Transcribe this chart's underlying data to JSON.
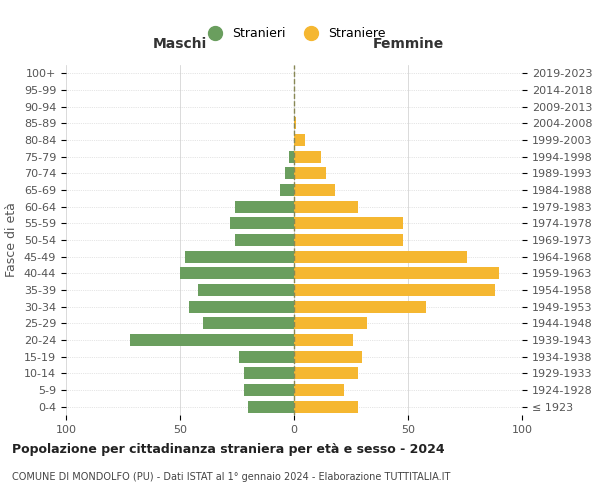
{
  "age_groups": [
    "100+",
    "95-99",
    "90-94",
    "85-89",
    "80-84",
    "75-79",
    "70-74",
    "65-69",
    "60-64",
    "55-59",
    "50-54",
    "45-49",
    "40-44",
    "35-39",
    "30-34",
    "25-29",
    "20-24",
    "15-19",
    "10-14",
    "5-9",
    "0-4"
  ],
  "birth_years": [
    "≤ 1923",
    "1924-1928",
    "1929-1933",
    "1934-1938",
    "1939-1943",
    "1944-1948",
    "1949-1953",
    "1954-1958",
    "1959-1963",
    "1964-1968",
    "1969-1973",
    "1974-1978",
    "1979-1983",
    "1984-1988",
    "1989-1993",
    "1994-1998",
    "1999-2003",
    "2004-2008",
    "2009-2013",
    "2014-2018",
    "2019-2023"
  ],
  "maschi": [
    0,
    0,
    0,
    0,
    0,
    2,
    4,
    6,
    26,
    28,
    26,
    48,
    50,
    42,
    46,
    40,
    72,
    24,
    22,
    22,
    20
  ],
  "femmine": [
    0,
    0,
    0,
    1,
    5,
    12,
    14,
    18,
    28,
    48,
    48,
    76,
    90,
    88,
    58,
    32,
    26,
    30,
    28,
    22,
    28
  ],
  "maschi_color": "#6a9e5e",
  "femmine_color": "#f5b731",
  "background_color": "#ffffff",
  "grid_color": "#cccccc",
  "dashed_line_color": "#888855",
  "title": "Popolazione per cittadinanza straniera per età e sesso - 2024",
  "subtitle": "COMUNE DI MONDOLFO (PU) - Dati ISTAT al 1° gennaio 2024 - Elaborazione TUTTITALIA.IT",
  "ylabel_left": "Fasce di età",
  "xlabel_left": "Maschi",
  "xlabel_right": "Femmine",
  "legend_maschi": "Stranieri",
  "legend_femmine": "Straniere",
  "xlim": 100
}
